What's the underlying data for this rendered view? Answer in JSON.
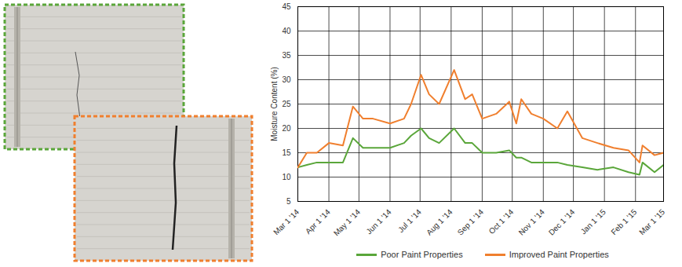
{
  "chart_data": {
    "type": "line",
    "y_label": "Moisture Content (%)",
    "x": [
      "2014-03-01",
      "2014-03-10",
      "2014-03-20",
      "2014-04-01",
      "2014-04-15",
      "2014-04-25",
      "2014-05-05",
      "2014-05-15",
      "2014-06-01",
      "2014-06-15",
      "2014-06-22",
      "2014-07-02",
      "2014-07-10",
      "2014-07-20",
      "2014-08-04",
      "2014-08-15",
      "2014-08-22",
      "2014-09-01",
      "2014-09-15",
      "2014-09-28",
      "2014-10-05",
      "2014-10-10",
      "2014-10-20",
      "2014-11-01",
      "2014-11-15",
      "2014-11-25",
      "2014-12-10",
      "2014-12-25",
      "2015-01-10",
      "2015-01-25",
      "2015-02-05",
      "2015-02-08",
      "2015-02-20",
      "2015-03-01"
    ],
    "series": [
      {
        "name": "Poor Paint Properties",
        "color": "#5aa63a",
        "values": [
          12,
          12.5,
          13,
          13,
          13,
          18,
          16,
          16,
          16,
          17,
          18.5,
          20,
          18,
          17,
          20,
          17,
          17,
          15,
          15,
          15.5,
          14,
          14,
          13,
          13,
          13,
          12.5,
          12,
          11.5,
          12,
          11,
          10.5,
          13,
          11,
          12.5
        ]
      },
      {
        "name": "Improved Paint Properties",
        "color": "#f07f2e",
        "values": [
          12,
          15,
          15,
          17,
          16.5,
          24.5,
          22,
          22,
          21,
          22,
          25,
          31,
          27,
          25,
          32,
          26,
          27,
          22,
          23,
          25.5,
          21,
          26,
          23,
          22,
          20,
          23.5,
          18,
          17,
          16,
          15.5,
          13,
          16.5,
          14.5,
          15
        ]
      }
    ],
    "xlim": [
      "2014-03-01",
      "2015-03-01"
    ],
    "xticks": [
      {
        "value": "2014-03-01",
        "label": "Mar 1 '14"
      },
      {
        "value": "2014-04-01",
        "label": "Apr 1 '14"
      },
      {
        "value": "2014-05-01",
        "label": "May 1 '14"
      },
      {
        "value": "2014-06-01",
        "label": "Jun 1 '14"
      },
      {
        "value": "2014-07-01",
        "label": "Jul 1 '14"
      },
      {
        "value": "2014-08-01",
        "label": "Aug 1 '14"
      },
      {
        "value": "2014-09-01",
        "label": "Sep 1 '14"
      },
      {
        "value": "2014-10-01",
        "label": "Oct 1 '14"
      },
      {
        "value": "2014-11-01",
        "label": "Nov 1 '14"
      },
      {
        "value": "2014-12-01",
        "label": "Dec 1 '14"
      },
      {
        "value": "2015-01-01",
        "label": "Jan 1 '15"
      },
      {
        "value": "2015-02-01",
        "label": "Feb 1 '15"
      },
      {
        "value": "2015-03-01",
        "label": "Mar 1 '15"
      }
    ],
    "ylim": [
      5,
      45
    ],
    "yticks": [
      5,
      10,
      15,
      20,
      25,
      30,
      35,
      40,
      45
    ],
    "grid": true,
    "legend": "bottom"
  }
}
